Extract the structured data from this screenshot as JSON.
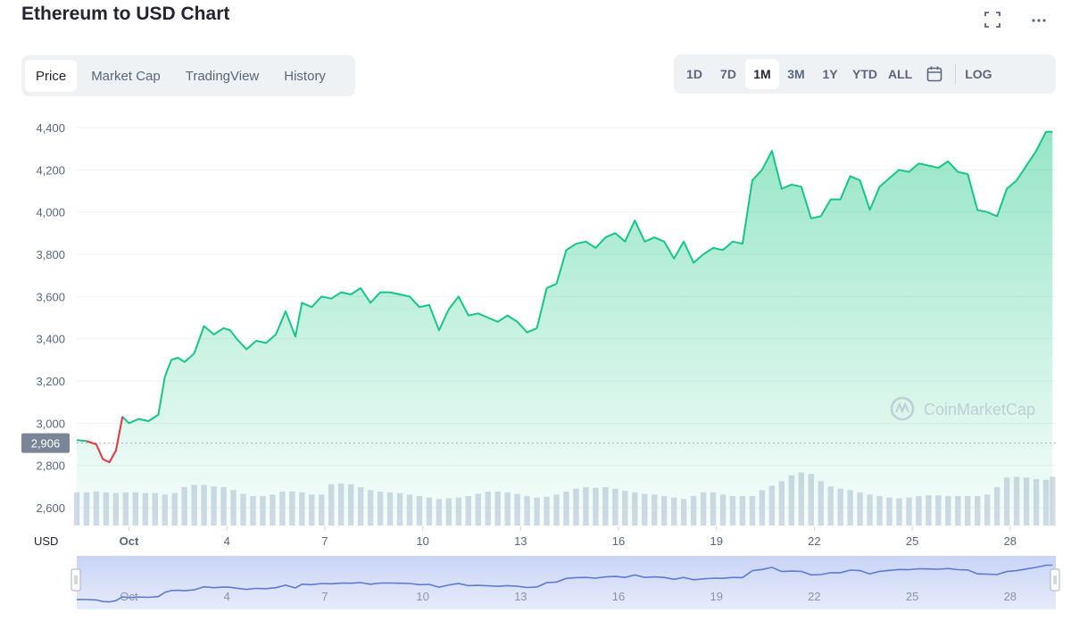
{
  "header": {
    "title": "Ethereum to USD Chart",
    "icons": [
      "fullscreen-icon",
      "more-icon"
    ]
  },
  "tabs": [
    {
      "label": "Price",
      "active": true
    },
    {
      "label": "Market Cap",
      "active": false
    },
    {
      "label": "TradingView",
      "active": false
    },
    {
      "label": "History",
      "active": false
    }
  ],
  "ranges": {
    "items": [
      {
        "label": "1D",
        "active": false
      },
      {
        "label": "7D",
        "active": false
      },
      {
        "label": "1M",
        "active": true
      },
      {
        "label": "3M",
        "active": false
      },
      {
        "label": "1Y",
        "active": false
      },
      {
        "label": "YTD",
        "active": false
      },
      {
        "label": "ALL",
        "active": false
      }
    ],
    "calendar_icon": "calendar-icon",
    "log_label": "LOG"
  },
  "watermark": "CoinMarketCap",
  "chart_data": {
    "type": "area",
    "title": "Ethereum to USD Chart",
    "ylabel": "USD",
    "ylim": [
      2550,
      4450
    ],
    "yticks": [
      2600,
      2800,
      3000,
      3200,
      3400,
      3600,
      3800,
      4000,
      4200,
      4400
    ],
    "ytick_labels": [
      "2,600",
      "2,800",
      "3,000",
      "3,200",
      "3,400",
      "3,600",
      "3,800",
      "4,000",
      "4,200",
      "4,400"
    ],
    "xlim": [
      -0.6,
      29.4
    ],
    "xticks": [
      1,
      4,
      7,
      10,
      13,
      16,
      19,
      22,
      25,
      28
    ],
    "xtick_labels": [
      "Oct",
      "4",
      "7",
      "10",
      "13",
      "16",
      "19",
      "22",
      "25",
      "28"
    ],
    "reference_price": 2906,
    "reference_label": "2,906",
    "colors": {
      "up": "#16c784",
      "down": "#ea3943",
      "volume": "#cfd6e4",
      "navigator": "#5b7bd5"
    },
    "series": [
      {
        "x": [
          -0.6,
          -0.3,
          0.0,
          0.2,
          0.4,
          0.6,
          0.8,
          1.0,
          1.3,
          1.6,
          1.9,
          2.1,
          2.3,
          2.5,
          2.7,
          3.0,
          3.3,
          3.6,
          3.9,
          4.1,
          4.3,
          4.6,
          4.9,
          5.2,
          5.5,
          5.8,
          6.1,
          6.3,
          6.6,
          6.9,
          7.2,
          7.5,
          7.8,
          8.1,
          8.4,
          8.7,
          9.0,
          9.3,
          9.6,
          9.9,
          10.2,
          10.5,
          10.8,
          11.1,
          11.4,
          11.7,
          12.0,
          12.3,
          12.6,
          12.9,
          13.2,
          13.5,
          13.8,
          14.1,
          14.4,
          14.7,
          15.0,
          15.3,
          15.6,
          15.9,
          16.2,
          16.5,
          16.8,
          17.1,
          17.4,
          17.7,
          18.0,
          18.3,
          18.6,
          18.9,
          19.2,
          19.5,
          19.8,
          20.1,
          20.4,
          20.7,
          21.0,
          21.3,
          21.6,
          21.9,
          22.2,
          22.5,
          22.8,
          23.1,
          23.4,
          23.7,
          24.0,
          24.3,
          24.6,
          24.9,
          25.2,
          25.5,
          25.8,
          26.1,
          26.4,
          26.7,
          27.0,
          27.3,
          27.6,
          27.9,
          28.2,
          28.5,
          28.8,
          29.1,
          29.3
        ],
        "values": [
          2920,
          2915,
          2900,
          2830,
          2815,
          2870,
          3030,
          3000,
          3020,
          3010,
          3040,
          3220,
          3300,
          3310,
          3290,
          3330,
          3460,
          3420,
          3450,
          3440,
          3400,
          3350,
          3390,
          3380,
          3420,
          3530,
          3410,
          3570,
          3550,
          3600,
          3590,
          3620,
          3610,
          3640,
          3570,
          3620,
          3620,
          3610,
          3600,
          3550,
          3560,
          3440,
          3540,
          3600,
          3510,
          3520,
          3500,
          3480,
          3510,
          3480,
          3430,
          3450,
          3640,
          3660,
          3820,
          3850,
          3860,
          3830,
          3880,
          3900,
          3860,
          3960,
          3860,
          3880,
          3860,
          3780,
          3860,
          3760,
          3800,
          3830,
          3820,
          3860,
          3850,
          4150,
          4200,
          4290,
          4110,
          4130,
          4120,
          3970,
          3980,
          4060,
          4060,
          4170,
          4150,
          4010,
          4120,
          4160,
          4200,
          4190,
          4230,
          4220,
          4210,
          4240,
          4190,
          4180,
          4010,
          4000,
          3980,
          4110,
          4150,
          4220,
          4290,
          4380,
          4380
        ]
      }
    ],
    "volume": {
      "x": [
        -0.6,
        -0.3,
        0.0,
        0.3,
        0.6,
        0.9,
        1.2,
        1.5,
        1.8,
        2.1,
        2.4,
        2.7,
        3.0,
        3.3,
        3.6,
        3.9,
        4.2,
        4.5,
        4.8,
        5.1,
        5.4,
        5.7,
        6.0,
        6.3,
        6.6,
        6.9,
        7.2,
        7.5,
        7.8,
        8.1,
        8.4,
        8.7,
        9.0,
        9.3,
        9.6,
        9.9,
        10.2,
        10.5,
        10.8,
        11.1,
        11.4,
        11.7,
        12.0,
        12.3,
        12.6,
        12.9,
        13.2,
        13.5,
        13.8,
        14.1,
        14.4,
        14.7,
        15.0,
        15.3,
        15.6,
        15.9,
        16.2,
        16.5,
        16.8,
        17.1,
        17.4,
        17.7,
        18.0,
        18.3,
        18.6,
        18.9,
        19.2,
        19.5,
        19.8,
        20.1,
        20.4,
        20.7,
        21.0,
        21.3,
        21.6,
        21.9,
        22.2,
        22.5,
        22.8,
        23.1,
        23.4,
        23.7,
        24.0,
        24.3,
        24.6,
        24.9,
        25.2,
        25.5,
        25.8,
        26.1,
        26.4,
        26.7,
        27.0,
        27.3,
        27.6,
        27.9,
        28.2,
        28.5,
        28.8,
        29.1,
        29.3
      ],
      "values": [
        0.45,
        0.45,
        0.46,
        0.45,
        0.44,
        0.45,
        0.45,
        0.44,
        0.44,
        0.42,
        0.44,
        0.52,
        0.55,
        0.55,
        0.53,
        0.52,
        0.48,
        0.43,
        0.4,
        0.4,
        0.42,
        0.46,
        0.46,
        0.45,
        0.42,
        0.42,
        0.56,
        0.57,
        0.56,
        0.52,
        0.48,
        0.46,
        0.45,
        0.44,
        0.42,
        0.4,
        0.38,
        0.36,
        0.37,
        0.38,
        0.4,
        0.43,
        0.46,
        0.46,
        0.45,
        0.43,
        0.4,
        0.38,
        0.39,
        0.42,
        0.46,
        0.5,
        0.52,
        0.51,
        0.52,
        0.5,
        0.47,
        0.45,
        0.43,
        0.42,
        0.4,
        0.38,
        0.36,
        0.4,
        0.45,
        0.45,
        0.42,
        0.4,
        0.4,
        0.4,
        0.48,
        0.54,
        0.6,
        0.68,
        0.72,
        0.7,
        0.6,
        0.53,
        0.5,
        0.48,
        0.45,
        0.42,
        0.4,
        0.38,
        0.37,
        0.38,
        0.4,
        0.41,
        0.41,
        0.4,
        0.4,
        0.4,
        0.4,
        0.42,
        0.52,
        0.65,
        0.66,
        0.65,
        0.63,
        0.62,
        0.66
      ]
    }
  }
}
